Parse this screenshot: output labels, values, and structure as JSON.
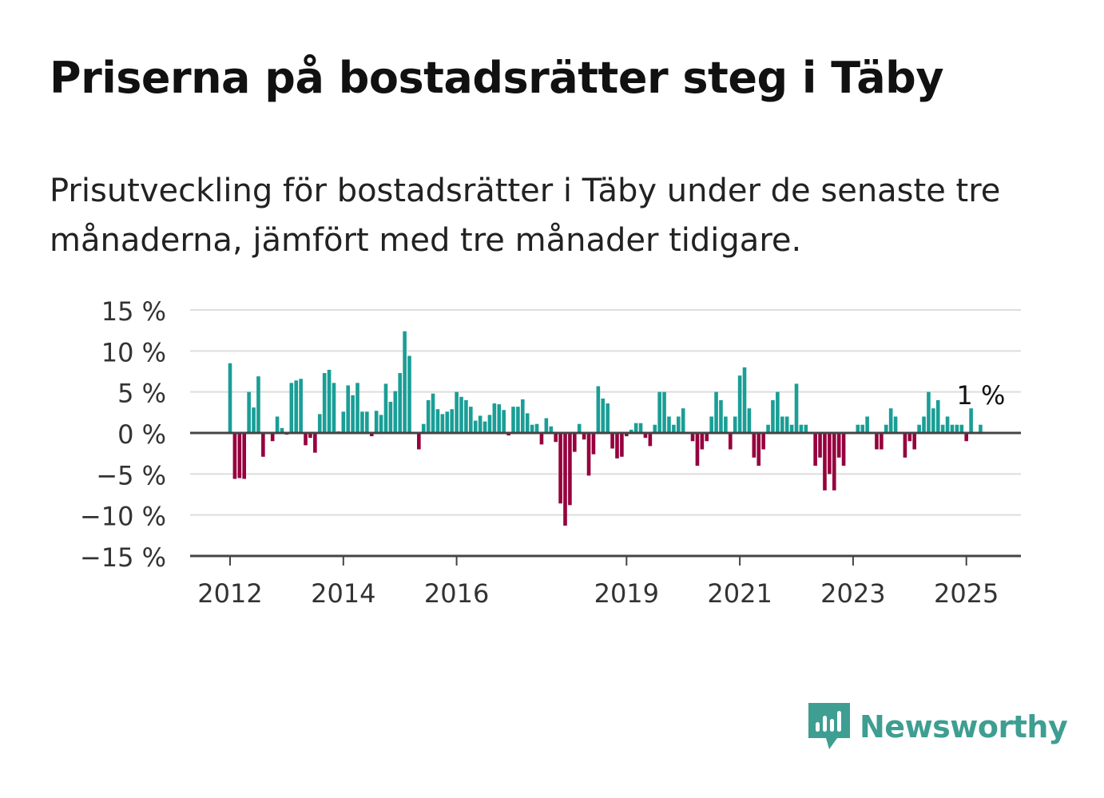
{
  "title": "Priserna på bostadsrätter steg i Täby",
  "subtitle": "Prisutveckling för bostadsrätter i Täby under de senaste tre månaderna, jämfört med tre månader tidigare.",
  "brand": "Newsworthy",
  "colors": {
    "positive": "#1a9e96",
    "negative": "#96003e",
    "brand": "#3e9e91",
    "grid": "#dddddd",
    "axis": "#444444"
  },
  "chart_data": {
    "type": "bar",
    "ylim": [
      -15,
      15
    ],
    "yticks": [
      15,
      10,
      5,
      0,
      -5,
      -10,
      -15
    ],
    "ytick_labels": [
      "15 %",
      "10 %",
      "5 %",
      "0 %",
      "−5 %",
      "−10 %",
      "−15 %"
    ],
    "xticks": [
      "2012",
      "2014",
      "2016",
      "2019",
      "2021",
      "2023",
      "2025"
    ],
    "x_start": "2012-01",
    "x_end": "2025-05",
    "grid": true,
    "annotation": "1 %",
    "values": [
      8.5,
      -5.6,
      -5.5,
      -5.6,
      5,
      3.1,
      6.9,
      -2.9,
      0,
      -1,
      2,
      0.6,
      -0.2,
      6.1,
      6.4,
      6.6,
      -1.5,
      -0.6,
      -2.4,
      2.3,
      7.3,
      7.7,
      6.1,
      0.2,
      2.6,
      5.8,
      4.6,
      6.1,
      2.6,
      2.6,
      -0.4,
      2.7,
      2.2,
      6,
      3.8,
      5.1,
      7.3,
      12.4,
      9.4,
      0,
      -2,
      1.1,
      4,
      4.8,
      2.9,
      2.3,
      2.6,
      2.9,
      5,
      4.4,
      4,
      3.2,
      1.5,
      2.1,
      1.4,
      2.2,
      3.6,
      3.5,
      2.8,
      -0.3,
      3.2,
      3.2,
      4.1,
      2.4,
      1,
      1.1,
      -1.4,
      1.8,
      0.8,
      -1.1,
      -8.6,
      -11.3,
      -8.8,
      -2.3,
      1.1,
      -0.8,
      -5.2,
      -2.6,
      5.7,
      4.2,
      3.6,
      -1.9,
      -3.1,
      -2.9,
      -0.4,
      0.4,
      1.2,
      1.2,
      -0.6,
      -1.6,
      1,
      5,
      5,
      2,
      1,
      2,
      3,
      0,
      -1,
      -4,
      -2,
      -1,
      2,
      5,
      4,
      2,
      -2,
      2,
      7,
      8,
      3,
      -3,
      -4,
      -2,
      1,
      4,
      5,
      2,
      2,
      1,
      6,
      1,
      1,
      0,
      -4,
      -3,
      -7,
      -5,
      -7,
      -3,
      -4,
      0,
      0,
      1,
      1,
      2,
      0,
      -2,
      -2,
      1,
      3,
      2,
      0,
      -3,
      -1,
      -2,
      1,
      2,
      5,
      3,
      4,
      1,
      2,
      1,
      1,
      1,
      -1,
      3,
      0,
      1
    ]
  }
}
